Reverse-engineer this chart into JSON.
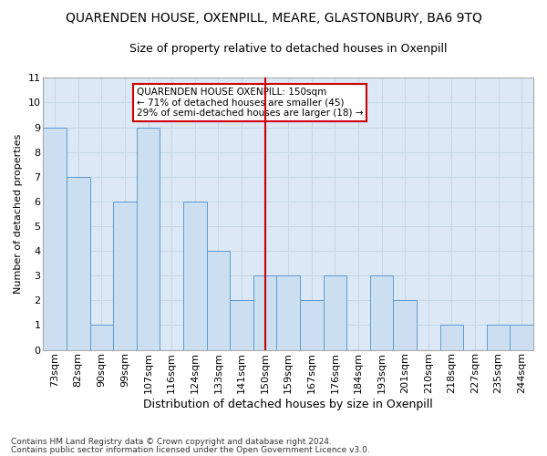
{
  "title": "QUARENDEN HOUSE, OXENPILL, MEARE, GLASTONBURY, BA6 9TQ",
  "subtitle": "Size of property relative to detached houses in Oxenpill",
  "xlabel": "Distribution of detached houses by size in Oxenpill",
  "ylabel": "Number of detached properties",
  "categories": [
    "73sqm",
    "82sqm",
    "90sqm",
    "99sqm",
    "107sqm",
    "116sqm",
    "124sqm",
    "133sqm",
    "141sqm",
    "150sqm",
    "159sqm",
    "167sqm",
    "176sqm",
    "184sqm",
    "193sqm",
    "201sqm",
    "210sqm",
    "218sqm",
    "227sqm",
    "235sqm",
    "244sqm"
  ],
  "values": [
    9,
    7,
    1,
    6,
    9,
    0,
    6,
    4,
    2,
    3,
    3,
    2,
    3,
    0,
    3,
    2,
    0,
    1,
    0,
    1,
    1
  ],
  "bar_color": "#ccdff0",
  "bar_edge_color": "#5b9bd5",
  "highlight_index": 9,
  "highlight_line_color": "#cc0000",
  "ylim": [
    0,
    11
  ],
  "yticks": [
    0,
    1,
    2,
    3,
    4,
    5,
    6,
    7,
    8,
    9,
    10,
    11
  ],
  "annotation_title": "QUARENDEN HOUSE OXENPILL: 150sqm",
  "annotation_line1": "← 71% of detached houses are smaller (45)",
  "annotation_line2": "29% of semi-detached houses are larger (18) →",
  "annotation_box_facecolor": "#ffffff",
  "annotation_box_edgecolor": "#cc0000",
  "grid_color": "#c8d8e8",
  "background_color": "#dce8f5",
  "footnote1": "Contains HM Land Registry data © Crown copyright and database right 2024.",
  "footnote2": "Contains public sector information licensed under the Open Government Licence v3.0.",
  "title_fontsize": 10,
  "subtitle_fontsize": 9,
  "xlabel_fontsize": 9,
  "ylabel_fontsize": 8,
  "tick_fontsize": 8,
  "footnote_fontsize": 6.5
}
